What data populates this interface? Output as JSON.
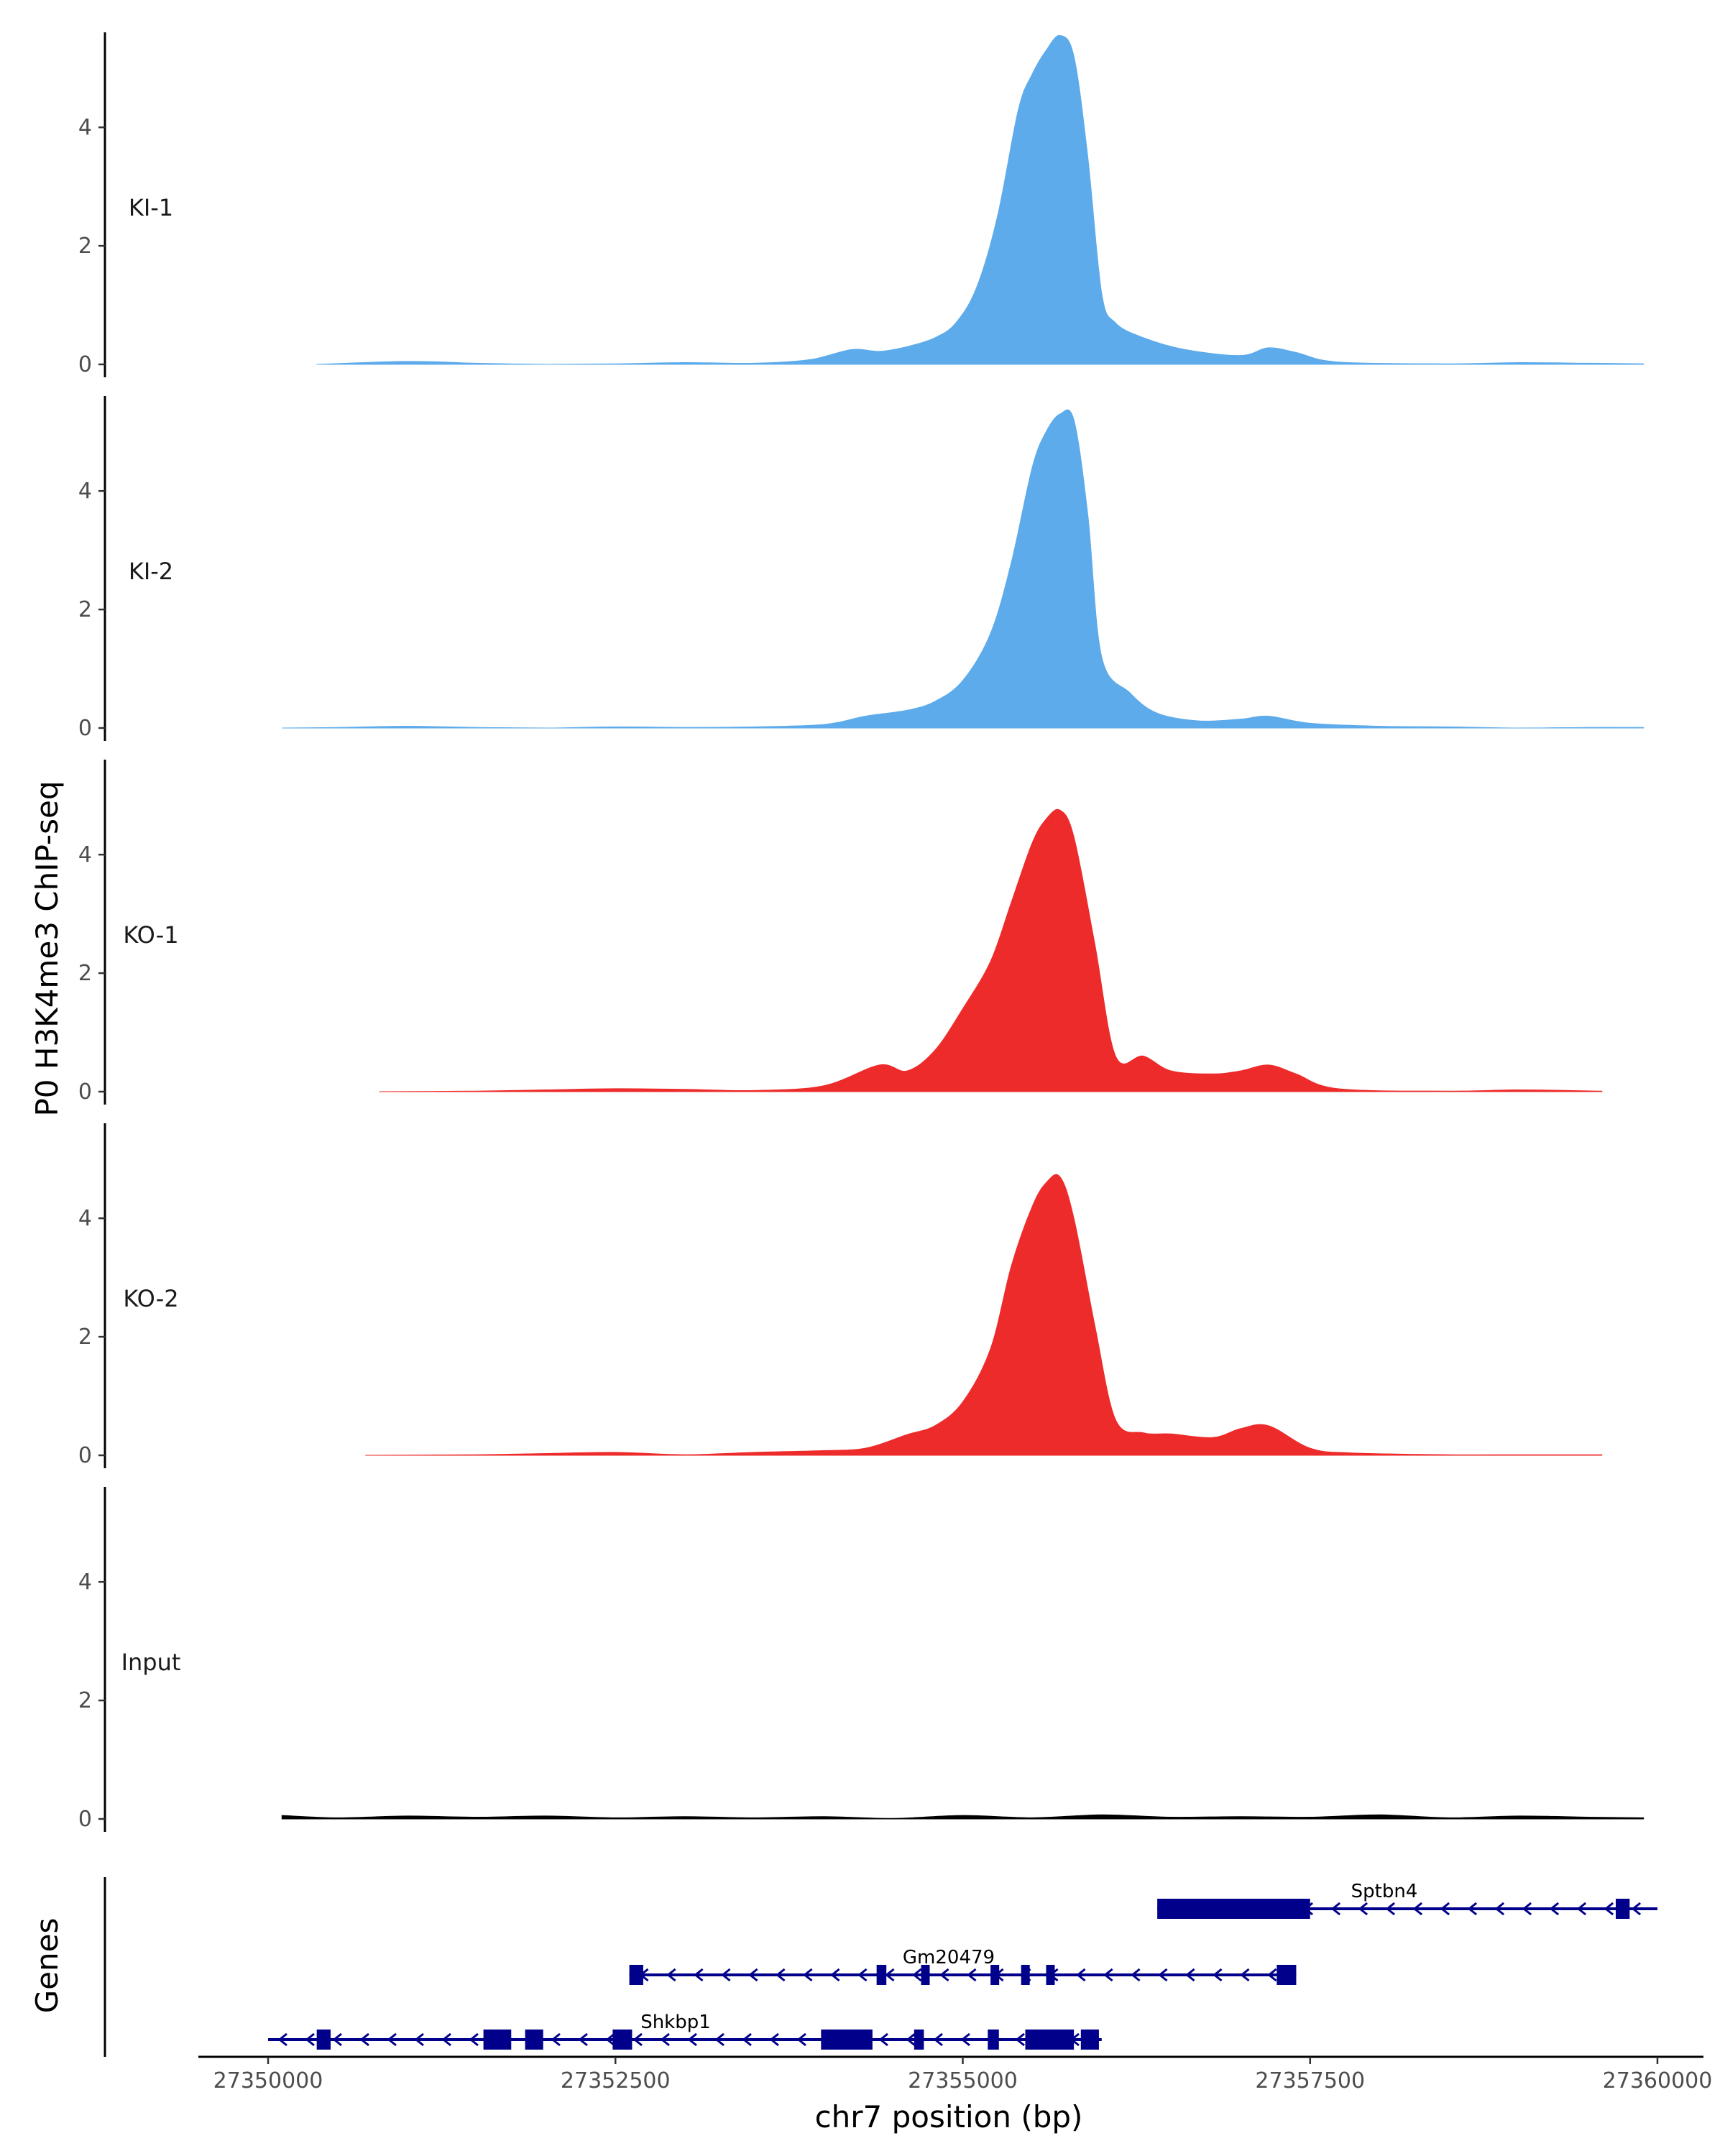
{
  "chart_data": {
    "type": "area",
    "ylabel": "P0 H3K4me3 ChIP-seq",
    "xlabel": "chr7 position (bp)",
    "genes_label": "Genes",
    "ylim": [
      0,
      5.6
    ],
    "y_ticks": [
      0,
      2,
      4
    ],
    "xlim": [
      27349500,
      27360300
    ],
    "x_ticks": [
      27350000,
      27352500,
      27355000,
      27357500,
      27360000
    ],
    "x_tick_labels": [
      "27350000",
      "27352500",
      "27355000",
      "27357500",
      "27360000"
    ],
    "grid": false,
    "colors": {
      "KI": "#5dabeb",
      "KO": "#ee2b2b",
      "Input": "#000000",
      "genes": "#00008b"
    },
    "tracks": [
      {
        "name": "KI-1",
        "color": "#5dabeb",
        "x": [
          27350350,
          27351000,
          27351500,
          27352000,
          27352500,
          27353000,
          27353500,
          27353900,
          27354200,
          27354400,
          27354600,
          27354800,
          27354950,
          27355100,
          27355250,
          27355400,
          27355500,
          27355600,
          27355700,
          27355800,
          27355900,
          27356000,
          27356100,
          27356300,
          27356600,
          27357000,
          27357200,
          27357400,
          27357700,
          27358500,
          27359000,
          27359500,
          27359900
        ],
        "y": [
          0,
          0.05,
          0.02,
          0,
          0.01,
          0.03,
          0.02,
          0.08,
          0.25,
          0.22,
          0.3,
          0.45,
          0.7,
          1.3,
          2.5,
          4.3,
          4.9,
          5.3,
          5.55,
          5.2,
          3.5,
          1.2,
          0.7,
          0.45,
          0.25,
          0.15,
          0.28,
          0.2,
          0.04,
          0.01,
          0.03,
          0.02,
          0.01
        ]
      },
      {
        "name": "KI-2",
        "color": "#5dabeb",
        "x": [
          27350100,
          27350500,
          27351000,
          27351500,
          27352000,
          27352500,
          27353000,
          27353500,
          27354000,
          27354300,
          27354600,
          27354800,
          27355000,
          27355200,
          27355350,
          27355500,
          27355600,
          27355700,
          27355800,
          27355900,
          27356000,
          27356200,
          27356400,
          27356700,
          27357000,
          27357200,
          27357500,
          27358000,
          27358500,
          27359000,
          27359500,
          27359900
        ],
        "y": [
          0,
          0.01,
          0.03,
          0.01,
          0,
          0.02,
          0.01,
          0.02,
          0.06,
          0.2,
          0.3,
          0.45,
          0.8,
          1.6,
          2.8,
          4.4,
          5.0,
          5.3,
          5.2,
          3.6,
          1.2,
          0.6,
          0.25,
          0.12,
          0.15,
          0.2,
          0.08,
          0.03,
          0.02,
          0,
          0.01,
          0.01
        ]
      },
      {
        "name": "KO-1",
        "color": "#ee2b2b",
        "x": [
          27350800,
          27351500,
          27352000,
          27352500,
          27353000,
          27353500,
          27354000,
          27354400,
          27354600,
          27354800,
          27355000,
          27355200,
          27355350,
          27355500,
          27355600,
          27355700,
          27355800,
          27355950,
          27356100,
          27356300,
          27356500,
          27356800,
          27357000,
          27357200,
          27357400,
          27357700,
          27358500,
          27359000,
          27359600
        ],
        "y": [
          0,
          0.01,
          0.03,
          0.05,
          0.04,
          0.02,
          0.1,
          0.45,
          0.35,
          0.7,
          1.4,
          2.2,
          3.2,
          4.2,
          4.6,
          4.75,
          4.3,
          2.5,
          0.6,
          0.6,
          0.35,
          0.3,
          0.35,
          0.45,
          0.3,
          0.05,
          0.01,
          0.03,
          0.01
        ]
      },
      {
        "name": "KO-2",
        "color": "#ee2b2b",
        "x": [
          27350700,
          27351500,
          27352000,
          27352500,
          27353000,
          27353500,
          27354000,
          27354300,
          27354600,
          27354800,
          27355000,
          27355200,
          27355350,
          27355500,
          27355600,
          27355700,
          27355800,
          27355950,
          27356100,
          27356300,
          27356500,
          27356800,
          27357000,
          27357200,
          27357500,
          27357800,
          27358500,
          27359000,
          27359600
        ],
        "y": [
          0,
          0.01,
          0.03,
          0.05,
          0.01,
          0.05,
          0.08,
          0.12,
          0.35,
          0.5,
          0.9,
          1.8,
          3.2,
          4.2,
          4.6,
          4.7,
          4.0,
          2.2,
          0.6,
          0.38,
          0.36,
          0.3,
          0.45,
          0.5,
          0.12,
          0.04,
          0.01,
          0.01,
          0.01
        ]
      },
      {
        "name": "Input",
        "color": "#000000",
        "x": [
          27350100,
          27350500,
          27351000,
          27351500,
          27352000,
          27352500,
          27353000,
          27353500,
          27354000,
          27354500,
          27355000,
          27355500,
          27356000,
          27356500,
          27357000,
          27357500,
          27358000,
          27358500,
          27359000,
          27359500,
          27359900
        ],
        "y": [
          0.06,
          0.02,
          0.05,
          0.03,
          0.05,
          0.02,
          0.04,
          0.02,
          0.04,
          0.01,
          0.06,
          0.02,
          0.07,
          0.03,
          0.04,
          0.03,
          0.07,
          0.02,
          0.05,
          0.03,
          0.02
        ]
      }
    ],
    "genes": [
      {
        "name": "Sptbn4",
        "start": 27356400,
        "end": 27360000,
        "row": 0,
        "exons": [
          [
            27356400,
            27357500
          ],
          [
            27359700,
            27359800
          ]
        ]
      },
      {
        "name": "Gm20479",
        "start": 27352600,
        "end": 27357400,
        "row": 1,
        "exons": [
          [
            27352600,
            27352700
          ],
          [
            27354380,
            27354450
          ],
          [
            27354700,
            27354740
          ],
          [
            27355200,
            27355260
          ],
          [
            27355420,
            27355460
          ],
          [
            27355600,
            27355640
          ],
          [
            27357260,
            27357400
          ]
        ]
      },
      {
        "name": "Shkbp1",
        "start": 27350000,
        "end": 27356000,
        "row": 2,
        "exons": [
          [
            27350350,
            27350450
          ],
          [
            27351550,
            27351750
          ],
          [
            27351850,
            27351980
          ],
          [
            27352480,
            27352620
          ],
          [
            27353980,
            27354350
          ],
          [
            27354650,
            27354720
          ],
          [
            27355180,
            27355260
          ],
          [
            27355450,
            27355800
          ],
          [
            27355850,
            27355980
          ]
        ]
      }
    ]
  }
}
